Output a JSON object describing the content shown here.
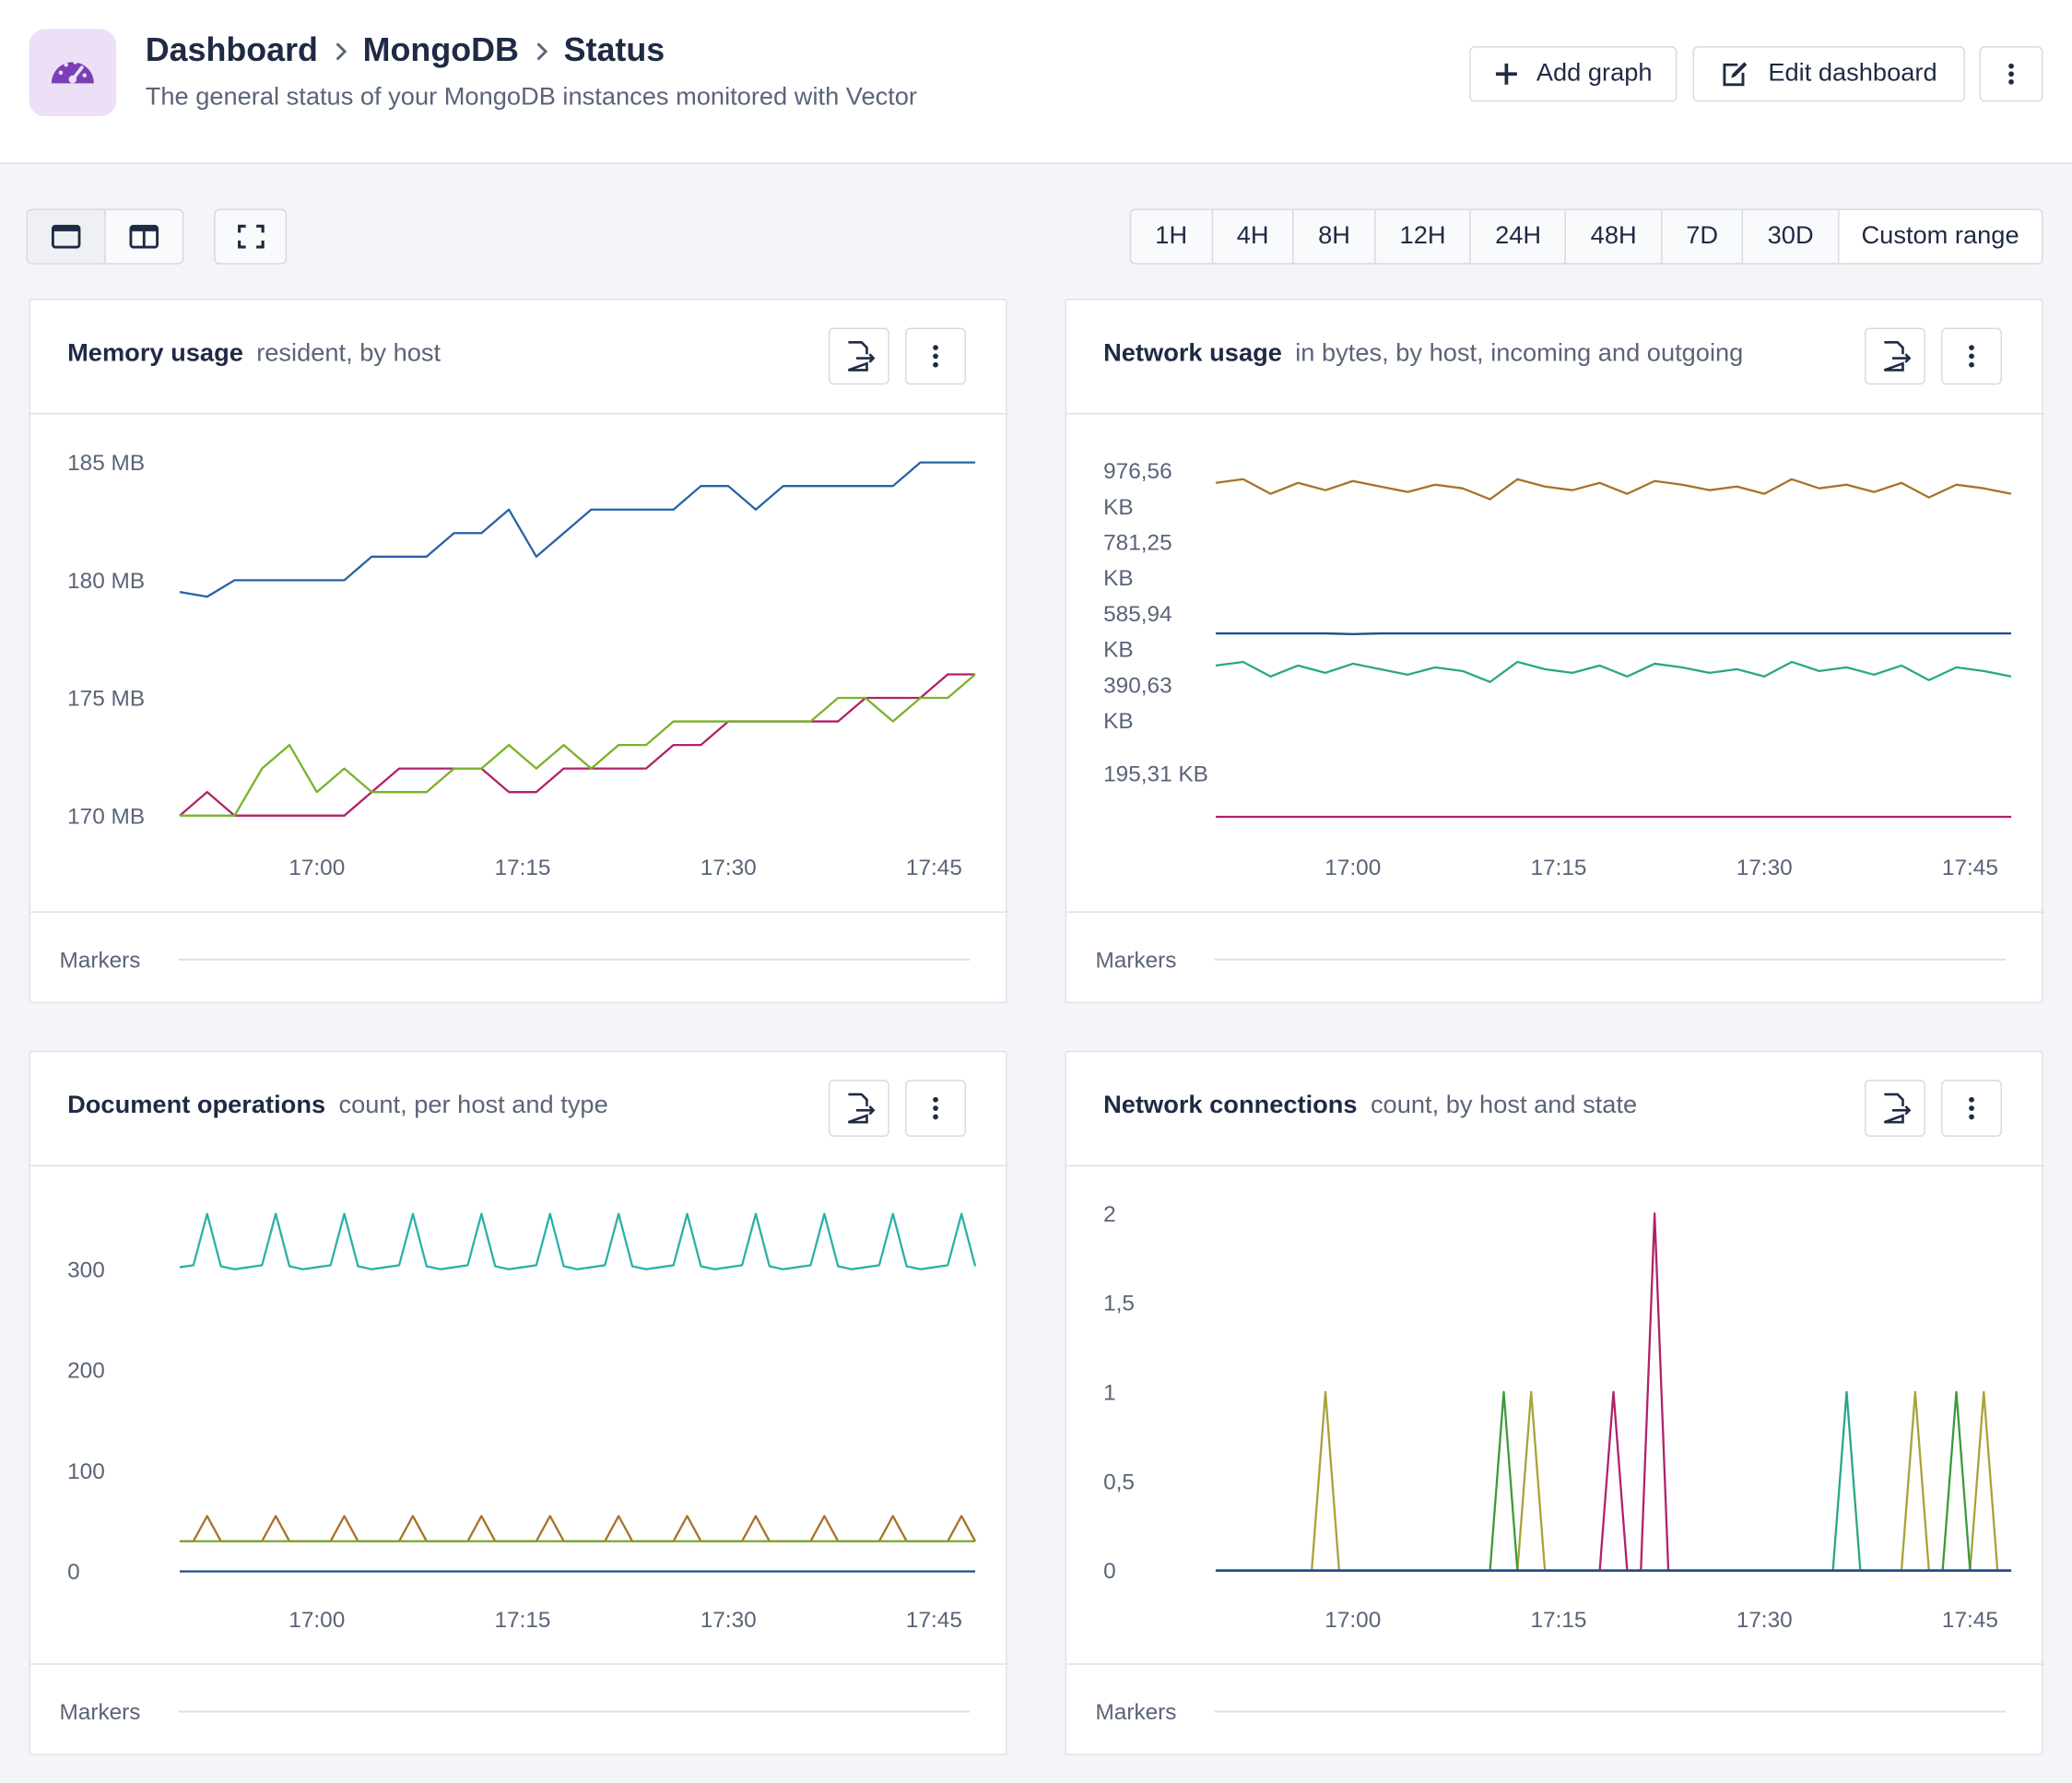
{
  "header": {
    "breadcrumb": [
      "Dashboard",
      "MongoDB",
      "Status"
    ],
    "subtitle": "The general status of your MongoDB instances monitored with Vector"
  },
  "actions": [
    "Add graph",
    "Edit dashboard"
  ],
  "time_ranges": [
    "1H",
    "4H",
    "8H",
    "12H",
    "24H",
    "48H",
    "7D",
    "30D",
    "Custom range"
  ],
  "chart_data": [
    {
      "type": "line",
      "title": "Memory usage",
      "subtitle": "resident, by host",
      "footer": "Markers",
      "x": [
        "16:50",
        "16:52",
        "16:54",
        "16:56",
        "16:58",
        "17:00",
        "17:02",
        "17:04",
        "17:06",
        "17:08",
        "17:10",
        "17:12",
        "17:14",
        "17:16",
        "17:18",
        "17:20",
        "17:22",
        "17:24",
        "17:26",
        "17:28",
        "17:30",
        "17:32",
        "17:34",
        "17:36",
        "17:38",
        "17:40",
        "17:42",
        "17:44",
        "17:46",
        "17:48"
      ],
      "xlim": [
        "16:50",
        "17:48"
      ],
      "xticks": [
        "17:00",
        "17:15",
        "17:30",
        "17:45"
      ],
      "ylim": [
        169.5,
        185.5
      ],
      "yticks": [
        {
          "value": 170,
          "label": "170 MB"
        },
        {
          "value": 175,
          "label": "175 MB"
        },
        {
          "value": 180,
          "label": "180 MB"
        },
        {
          "value": 185,
          "label": "185 MB"
        }
      ],
      "series": [
        {
          "color": "#b0226a",
          "values": [
            170,
            171,
            170,
            170,
            170,
            170,
            170,
            171,
            172,
            172,
            172,
            172,
            171,
            171,
            172,
            172,
            172,
            172,
            173,
            173,
            174,
            174,
            174,
            174,
            174,
            175,
            175,
            175,
            176,
            176
          ]
        },
        {
          "color": "#78b32a",
          "values": [
            170,
            170,
            170,
            172,
            173,
            171,
            172,
            171,
            171,
            171,
            172,
            172,
            173,
            172,
            173,
            172,
            173,
            173,
            174,
            174,
            174,
            174,
            174,
            174,
            175,
            175,
            174,
            175,
            175,
            176
          ]
        },
        {
          "color": "#2563a8",
          "values": [
            179.5,
            179.3,
            180,
            180,
            180,
            180,
            180,
            181,
            181,
            181,
            182,
            182,
            183,
            181,
            182,
            183,
            183,
            183,
            183,
            184,
            184,
            183,
            184,
            184,
            184,
            184,
            184,
            185,
            185,
            185
          ]
        }
      ]
    },
    {
      "type": "line",
      "title": "Network usage",
      "subtitle": "in bytes, by host, incoming and outgoing",
      "footer": "Markers",
      "x": [
        "16:50",
        "16:52",
        "16:54",
        "16:56",
        "16:58",
        "17:00",
        "17:02",
        "17:04",
        "17:06",
        "17:08",
        "17:10",
        "17:12",
        "17:14",
        "17:16",
        "17:18",
        "17:20",
        "17:22",
        "17:24",
        "17:26",
        "17:28",
        "17:30",
        "17:32",
        "17:34",
        "17:36",
        "17:38",
        "17:40",
        "17:42",
        "17:44",
        "17:46",
        "17:48"
      ],
      "xlim": [
        "16:50",
        "17:48"
      ],
      "xticks": [
        "17:00",
        "17:15",
        "17:30",
        "17:45"
      ],
      "ylim": [
        47,
        1078
      ],
      "yticks": [
        {
          "value": 195.31,
          "label": "195,31 KB"
        },
        {
          "value": 390.63,
          "label": "390,63 KB"
        },
        {
          "value": 585.94,
          "label": "585,94 KB"
        },
        {
          "value": 781.25,
          "label": "781,25 KB"
        },
        {
          "value": 976.56,
          "label": "976,56 KB"
        }
      ],
      "series": [
        {
          "color": "#a8722a",
          "values": [
            990,
            1000,
            960,
            990,
            970,
            995,
            980,
            965,
            985,
            975,
            945,
            1000,
            980,
            970,
            990,
            960,
            995,
            985,
            970,
            980,
            960,
            1000,
            975,
            985,
            965,
            990,
            950,
            985,
            975,
            960
          ]
        },
        {
          "color": "#2aa68a",
          "values": [
            490,
            500,
            460,
            490,
            470,
            495,
            480,
            465,
            485,
            475,
            445,
            500,
            480,
            470,
            490,
            460,
            495,
            485,
            470,
            480,
            460,
            500,
            475,
            485,
            465,
            490,
            450,
            485,
            475,
            460
          ]
        },
        {
          "color": "#1f4e8c",
          "values": [
            578,
            578,
            578,
            578,
            578,
            576,
            578,
            578,
            578,
            578,
            578,
            578,
            578,
            578,
            578,
            578,
            578,
            578,
            578,
            578,
            578,
            578,
            578,
            578,
            578,
            578,
            578,
            578,
            578,
            578
          ]
        },
        {
          "color": "#b0226a",
          "values": [
            76,
            76,
            76,
            76,
            76,
            76,
            76,
            76,
            76,
            76,
            76,
            76,
            76,
            76,
            76,
            76,
            76,
            76,
            76,
            76,
            76,
            76,
            76,
            76,
            76,
            76,
            76,
            76,
            76,
            76
          ]
        }
      ]
    },
    {
      "type": "line",
      "title": "Document operations",
      "subtitle": "count, per host and type",
      "footer": "Markers",
      "x": [
        "16:50",
        "16:51",
        "16:52",
        "16:53",
        "16:54",
        "16:55",
        "16:56",
        "16:57",
        "16:58",
        "16:59",
        "17:00",
        "17:01",
        "17:02",
        "17:03",
        "17:04",
        "17:05",
        "17:06",
        "17:07",
        "17:08",
        "17:09",
        "17:10",
        "17:11",
        "17:12",
        "17:13",
        "17:14",
        "17:15",
        "17:16",
        "17:17",
        "17:18",
        "17:19",
        "17:20",
        "17:21",
        "17:22",
        "17:23",
        "17:24",
        "17:25",
        "17:26",
        "17:27",
        "17:28",
        "17:29",
        "17:30",
        "17:31",
        "17:32",
        "17:33",
        "17:34",
        "17:35",
        "17:36",
        "17:37",
        "17:38",
        "17:39",
        "17:40",
        "17:41",
        "17:42",
        "17:43",
        "17:44",
        "17:45",
        "17:46",
        "17:47",
        "17:48"
      ],
      "xlim": [
        "16:50",
        "17:48"
      ],
      "xticks": [
        "17:00",
        "17:15",
        "17:30",
        "17:45"
      ],
      "ylim": [
        -8,
        366
      ],
      "yticks": [
        0,
        100,
        200,
        300
      ],
      "series": [
        {
          "color": "#2ab0a8",
          "values": [
            302,
            304,
            355,
            303,
            300,
            302,
            304,
            355,
            303,
            300,
            302,
            304,
            355,
            303,
            300,
            302,
            304,
            355,
            303,
            300,
            302,
            304,
            355,
            303,
            300,
            302,
            304,
            355,
            303,
            300,
            302,
            304,
            355,
            303,
            300,
            302,
            304,
            355,
            303,
            300,
            302,
            304,
            355,
            303,
            300,
            302,
            304,
            355,
            303,
            300,
            302,
            304,
            355,
            303,
            300,
            302,
            304,
            355,
            303
          ]
        },
        {
          "color": "#a8722a",
          "values": [
            30,
            30,
            55,
            30,
            30,
            30,
            30,
            55,
            30,
            30,
            30,
            30,
            55,
            30,
            30,
            30,
            30,
            55,
            30,
            30,
            30,
            30,
            55,
            30,
            30,
            30,
            30,
            55,
            30,
            30,
            30,
            30,
            55,
            30,
            30,
            30,
            30,
            55,
            30,
            30,
            30,
            30,
            55,
            30,
            30,
            30,
            30,
            55,
            30,
            30,
            30,
            30,
            55,
            30,
            30,
            30,
            30,
            55,
            30
          ]
        },
        {
          "color": "#78a82a",
          "values": [
            30,
            30,
            30,
            30,
            30,
            30,
            30,
            30,
            30,
            30,
            30,
            30,
            30,
            30,
            30,
            30,
            30,
            30,
            30,
            30,
            30,
            30,
            30,
            30,
            30,
            30,
            30,
            30,
            30,
            30,
            30,
            30,
            30,
            30,
            30,
            30,
            30,
            30,
            30,
            30,
            30,
            30,
            30,
            30,
            30,
            30,
            30,
            30,
            30,
            30,
            30,
            30,
            30,
            30,
            30,
            30,
            30,
            30,
            30
          ]
        },
        {
          "color": "#1f4e8c",
          "values": [
            0,
            0,
            0,
            0,
            0,
            0,
            0,
            0,
            0,
            0,
            0,
            0,
            0,
            0,
            0,
            0,
            0,
            0,
            0,
            0,
            0,
            0,
            0,
            0,
            0,
            0,
            0,
            0,
            0,
            0,
            0,
            0,
            0,
            0,
            0,
            0,
            0,
            0,
            0,
            0,
            0,
            0,
            0,
            0,
            0,
            0,
            0,
            0,
            0,
            0,
            0,
            0,
            0,
            0,
            0,
            0,
            0,
            0,
            0
          ]
        }
      ]
    },
    {
      "type": "line",
      "title": "Network connections",
      "subtitle": "count, by host and state",
      "footer": "Markers",
      "x": [
        "16:50",
        "16:57",
        "16:58",
        "16:59",
        "17:10",
        "17:11",
        "17:12",
        "17:13",
        "17:14",
        "17:18",
        "17:19",
        "17:20",
        "17:21",
        "17:22",
        "17:23",
        "17:35",
        "17:36",
        "17:37",
        "17:40",
        "17:41",
        "17:42",
        "17:43",
        "17:44",
        "17:45",
        "17:46",
        "17:47",
        "17:48"
      ],
      "xlim": [
        "16:50",
        "17:48"
      ],
      "xticks": [
        "17:00",
        "17:15",
        "17:30",
        "17:45"
      ],
      "ylim": [
        -0.05,
        2.06
      ],
      "yticks": [
        0,
        {
          "value": 0.5,
          "label": "0,5"
        },
        1,
        {
          "value": 1.5,
          "label": "1,5"
        },
        2
      ],
      "series": [
        {
          "color": "#a9a23a",
          "values": [
            0,
            0,
            1,
            0,
            0,
            0,
            0,
            1,
            0,
            0,
            0,
            0,
            0,
            0,
            0,
            0,
            0,
            0,
            0,
            1,
            0,
            0,
            0,
            0,
            1,
            0,
            0
          ]
        },
        {
          "color": "#3a9a3a",
          "values": [
            0,
            0,
            0,
            0,
            0,
            1,
            0,
            0,
            0,
            0,
            0,
            0,
            0,
            0,
            0,
            0,
            0,
            0,
            0,
            0,
            0,
            0,
            1,
            0,
            0,
            0,
            0
          ]
        },
        {
          "color": "#b0226a",
          "values": [
            0,
            0,
            0,
            0,
            0,
            0,
            0,
            0,
            0,
            0,
            1,
            0,
            0,
            2,
            0,
            0,
            0,
            0,
            0,
            0,
            0,
            0,
            0,
            0,
            0,
            0,
            0
          ]
        },
        {
          "color": "#2aa68a",
          "values": [
            0,
            0,
            0,
            0,
            0,
            0,
            0,
            0,
            0,
            0,
            0,
            0,
            0,
            0,
            0,
            0,
            1,
            0,
            0,
            0,
            0,
            0,
            0,
            0,
            0,
            0,
            0
          ]
        },
        {
          "color": "#1f4e8c",
          "values": [
            0,
            0,
            0,
            0,
            0,
            0,
            0,
            0,
            0,
            0,
            0,
            0,
            0,
            0,
            0,
            0,
            0,
            0,
            0,
            0,
            0,
            0,
            0,
            0,
            0,
            0,
            0
          ]
        }
      ]
    }
  ]
}
